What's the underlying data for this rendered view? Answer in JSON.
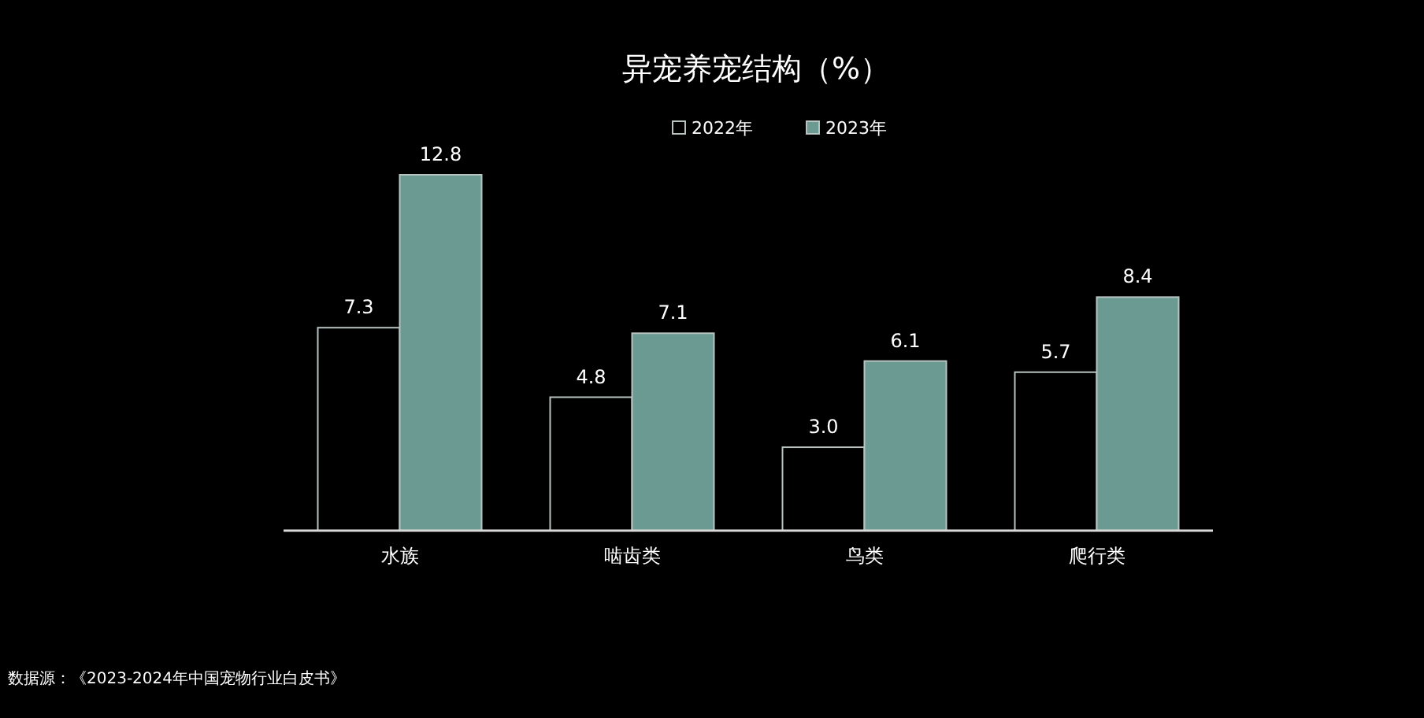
{
  "chart_data": {
    "type": "bar",
    "title": "异宠养宠结构（%）",
    "categories": [
      "水族",
      "啮齿类",
      "鸟类",
      "爬行类"
    ],
    "series": [
      {
        "name": "2022年",
        "color": "#000000",
        "values": [
          7.3,
          4.8,
          3.0,
          5.7
        ],
        "value_labels": [
          "7.3",
          "4.8",
          "3.0",
          "5.7"
        ]
      },
      {
        "name": "2023年",
        "color": "#6a9a92",
        "values": [
          12.8,
          7.1,
          6.1,
          8.4
        ],
        "value_labels": [
          "12.8",
          "7.1",
          "6.1",
          "8.4"
        ]
      }
    ],
    "legend": "top",
    "tick_labels": "x",
    "annotations": [
      "数据源：《2023-2024年中国宠物行业白皮书》"
    ]
  }
}
